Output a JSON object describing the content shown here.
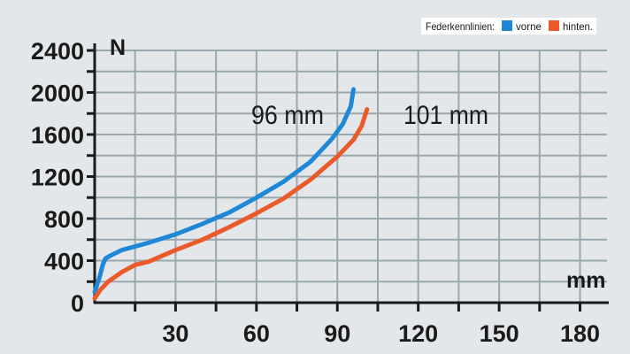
{
  "chart_data": {
    "type": "line",
    "xlabel": "mm",
    "ylabel": "N",
    "xlim": [
      0,
      190
    ],
    "ylim": [
      0,
      2400
    ],
    "x_ticks": [
      30,
      60,
      90,
      120,
      150,
      180
    ],
    "y_ticks": [
      0,
      400,
      800,
      1200,
      1600,
      2000,
      2400
    ],
    "grid": true,
    "legend": {
      "title": "Federkennlinien:",
      "placement": "top-right",
      "entries": [
        {
          "label": "vorne",
          "color": "#1e88d6"
        },
        {
          "label": "hinten.",
          "color": "#ea5a2a"
        }
      ]
    },
    "series": [
      {
        "name": "vorne",
        "color": "#1e88d6",
        "annotation": "96 mm",
        "x": [
          0,
          2,
          3,
          4,
          6,
          10,
          20,
          30,
          40,
          50,
          60,
          70,
          80,
          88,
          92,
          95,
          96
        ],
        "y": [
          100,
          260,
          360,
          420,
          450,
          500,
          570,
          650,
          750,
          860,
          1000,
          1150,
          1340,
          1560,
          1700,
          1870,
          2030
        ]
      },
      {
        "name": "hinten.",
        "color": "#ea5a2a",
        "annotation": "101 mm",
        "x": [
          0,
          2,
          5,
          10,
          15,
          20,
          30,
          40,
          50,
          60,
          70,
          80,
          90,
          96,
          99,
          101
        ],
        "y": [
          40,
          120,
          200,
          290,
          360,
          390,
          500,
          600,
          720,
          850,
          990,
          1170,
          1390,
          1550,
          1680,
          1840
        ]
      }
    ]
  }
}
